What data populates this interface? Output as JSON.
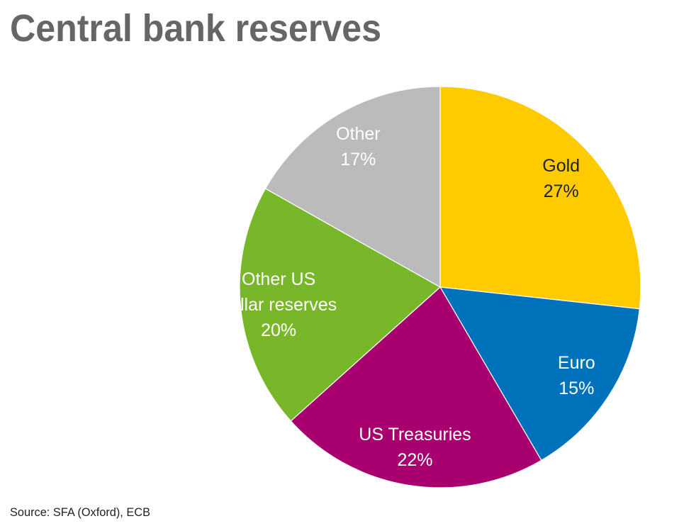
{
  "chart_data": {
    "type": "pie",
    "title": "Central bank reserves",
    "categories": [
      "Gold",
      "Euro",
      "US Treasuries",
      "Other US\ndollar reserves",
      "Other"
    ],
    "values": [
      27,
      15,
      22,
      20,
      17
    ],
    "value_labels": [
      "27%",
      "15%",
      "22%",
      "20%",
      "17%"
    ],
    "colors": [
      "#fecb00",
      "#0072bc",
      "#a8006e",
      "#78b72a",
      "#bbbbbb"
    ],
    "label_colors": [
      "#222222",
      "#ffffff",
      "#ffffff",
      "#ffffff",
      "#ffffff"
    ],
    "source": "Source: SFA (Oxford), ECB"
  }
}
